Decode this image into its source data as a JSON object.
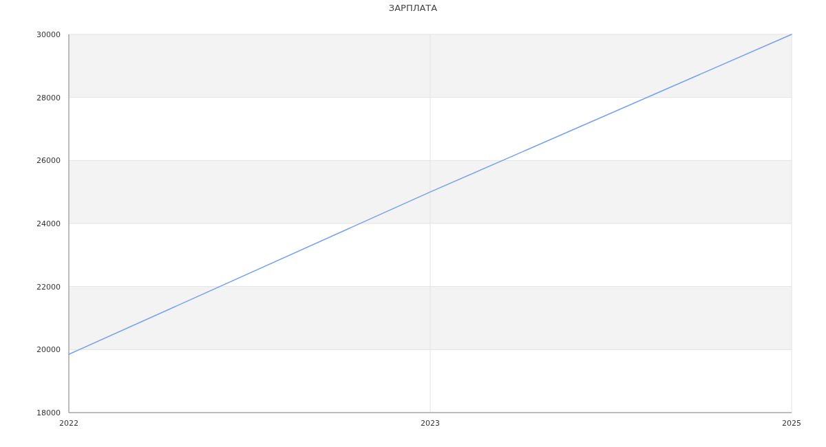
{
  "chart_data": {
    "type": "line",
    "title": "ЗАРПЛАТА",
    "categories": [
      "2022",
      "2023",
      "2025"
    ],
    "series": [
      {
        "color": "#769ff2",
        "values": [
          19850,
          25000,
          30000
        ]
      }
    ],
    "ylim": [
      18000,
      30000
    ],
    "yticks": [
      18000,
      20000,
      22000,
      24000,
      26000,
      28000,
      30000
    ],
    "bands": [
      {
        "axis": "y",
        "from": 20000,
        "to": 22000,
        "color": "#f3f3f3"
      },
      {
        "axis": "y",
        "from": 24000,
        "to": 26000,
        "color": "#f3f3f3"
      },
      {
        "axis": "y",
        "from": 28000,
        "to": 30000,
        "color": "#f3f3f3"
      }
    ],
    "grid": true,
    "marker": "none",
    "line_style": "solid"
  }
}
